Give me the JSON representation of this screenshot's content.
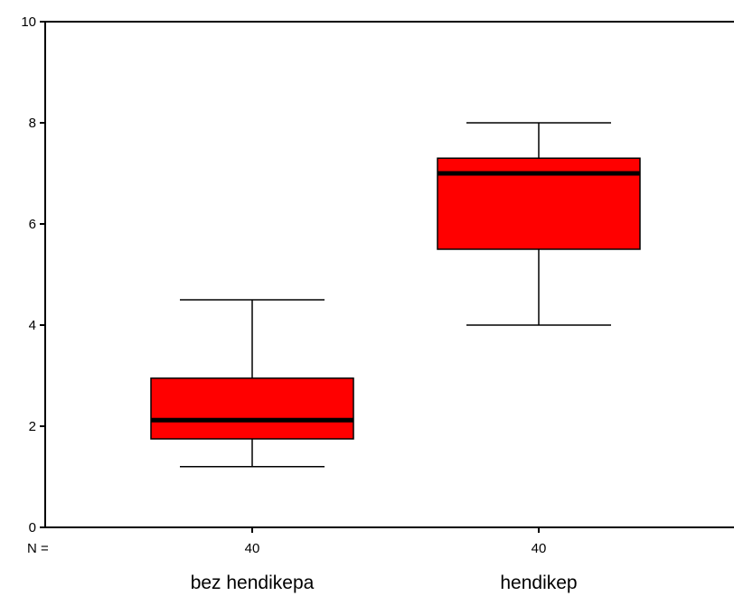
{
  "chart_data": {
    "type": "boxplot",
    "title": "",
    "xlabel": "",
    "ylabel": "",
    "ylim": [
      0,
      10
    ],
    "yticks": [
      0,
      2,
      4,
      6,
      8,
      10
    ],
    "n_label": "N =",
    "categories": [
      "bez hendikepa",
      "hendikep"
    ],
    "boxes": [
      {
        "category": "bez hendikepa",
        "n": "40",
        "whisker_low": 1.2,
        "q1": 1.75,
        "median": 2.12,
        "q3": 2.95,
        "whisker_high": 4.5
      },
      {
        "category": "hendikep",
        "n": "40",
        "whisker_low": 4.0,
        "q1": 5.5,
        "median": 7.0,
        "q3": 7.3,
        "whisker_high": 8.0
      }
    ],
    "colors": {
      "box_fill": "#ff0000",
      "stroke": "#000000",
      "background": "#ffffff"
    },
    "grid": false,
    "legend": "none"
  }
}
